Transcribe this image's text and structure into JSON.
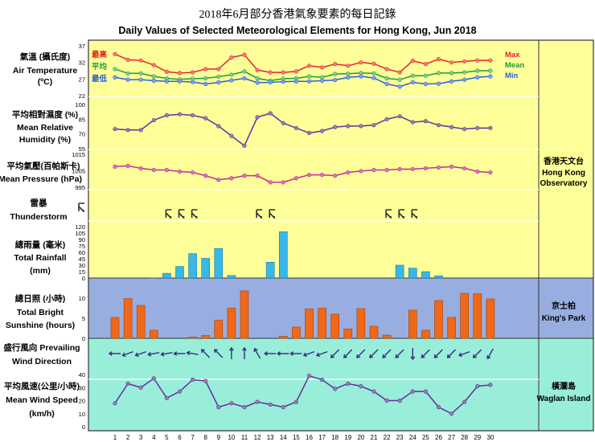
{
  "header": {
    "title_zh": "2018年6月部分香港氣象要素的每日記錄",
    "title_en": "Daily Values of Selected Meteorological Elements for Hong Kong, Jun 2018"
  },
  "panels": {
    "temperature": {
      "label_zh": "氣溫 (攝氏度)",
      "label_en_1": "Air Temperature",
      "label_en_2": "(ºC)"
    },
    "humidity": {
      "label_zh": "平均相對濕度 (%)",
      "label_en_1": "Mean Relative",
      "label_en_2": "Humidity  (%)"
    },
    "pressure": {
      "label_zh": "平均氣壓(百帕斯卡)",
      "label_en_1": "Mean Pressure (hPa)"
    },
    "thunder": {
      "label_zh": "雷暴",
      "label_en_1": "Thunderstorm"
    },
    "rainfall": {
      "label_zh": "總雨量 (毫米)",
      "label_en_1": "Total Rainfall",
      "label_en_2": "(mm)"
    },
    "sunshine": {
      "label_zh": "總日照 (小時)",
      "label_en_1": "Total Bright",
      "label_en_2": "Sunshine  (hours)"
    },
    "wind_dir": {
      "label_zh": "盛行風向 Prevailing",
      "label_en_1": "Wind Direction"
    },
    "wind_speed": {
      "label_zh": "平均風速(公里/小時)",
      "label_en_1": "Mean Wind Speed",
      "label_en_2": "(km/h)"
    }
  },
  "stations": [
    {
      "zh": "香港天文台",
      "en_1": "Hong Kong",
      "en_2": "Observatory"
    },
    {
      "zh": "京士柏",
      "en_1": "King's Park",
      "en_2": ""
    },
    {
      "zh": "橫瀾島",
      "en_1": "Waglan Island",
      "en_2": ""
    }
  ],
  "legend": {
    "max_zh": "最高",
    "mean_zh": "平均",
    "min_zh": "最低",
    "max_en": "Max",
    "mean_en": "Mean",
    "min_en": "Min"
  },
  "colors": {
    "max": "#e8202a",
    "mean": "#1c9a3a",
    "min": "#2a5fd8",
    "line": "#6a2aa0",
    "marker": "#8a8aa0",
    "pressure_line": "#c0308a",
    "pressure_marker": "#e070c8",
    "yellow_bg": "#ffff99",
    "blue_bg": "#99aee0",
    "green_bg": "#99eeda",
    "rain_bar": "#38b8e8",
    "sun_bar": "#f06818",
    "wind_arrow": "#3a2a7a",
    "thunder": "#303030"
  },
  "chart_data": {
    "type": "line",
    "days": [
      1,
      2,
      3,
      4,
      5,
      6,
      7,
      8,
      9,
      10,
      11,
      12,
      13,
      14,
      15,
      16,
      17,
      18,
      19,
      20,
      21,
      22,
      23,
      24,
      25,
      26,
      27,
      28,
      29,
      30
    ],
    "temperature": {
      "yticks": [
        22,
        27,
        32,
        37
      ],
      "ylim": [
        22,
        37
      ],
      "series": [
        {
          "name": "Max",
          "values": [
            34.5,
            32.8,
            32.6,
            31.2,
            29.2,
            28.8,
            29.0,
            30.0,
            30.0,
            33.5,
            34.3,
            29.7,
            29.0,
            29.0,
            29.3,
            31.0,
            30.5,
            31.5,
            31.0,
            32.0,
            31.6,
            30.0,
            29.0,
            32.5,
            31.5,
            33.0,
            32.0,
            32.3,
            32.6,
            32.6
          ]
        },
        {
          "name": "Mean",
          "values": [
            30.0,
            28.7,
            28.7,
            27.8,
            27.2,
            26.9,
            27.1,
            27.2,
            27.7,
            28.3,
            29.3,
            27.2,
            26.5,
            27.1,
            27.2,
            27.8,
            27.5,
            28.5,
            28.6,
            28.8,
            28.7,
            27.2,
            26.8,
            28.0,
            28.0,
            28.8,
            28.8,
            29.0,
            29.5,
            29.5
          ]
        },
        {
          "name": "Min",
          "values": [
            27.5,
            26.8,
            26.8,
            26.5,
            26.3,
            26.3,
            26.1,
            25.5,
            26.0,
            26.6,
            27.2,
            25.9,
            26.0,
            26.2,
            26.3,
            26.3,
            26.5,
            26.7,
            27.5,
            27.8,
            27.3,
            25.5,
            24.7,
            26.0,
            25.5,
            25.6,
            26.3,
            26.8,
            27.5,
            27.8
          ]
        }
      ]
    },
    "humidity": {
      "yticks": [
        55,
        70,
        85,
        100
      ],
      "ylim": [
        55,
        100
      ],
      "values": [
        75,
        74,
        74,
        84,
        89,
        90,
        89,
        86,
        78,
        68,
        58,
        87,
        91,
        81,
        76,
        71,
        73,
        77,
        78,
        78,
        79,
        85,
        88,
        82,
        83,
        79,
        77,
        75,
        76,
        76
      ]
    },
    "pressure": {
      "yticks": [
        995,
        1005,
        1015
      ],
      "ylim": [
        995,
        1015
      ],
      "values": [
        1007.5,
        1008.0,
        1006.5,
        1005.5,
        1005.5,
        1004.5,
        1004.0,
        1002.0,
        999.5,
        1000.5,
        1002.0,
        1002.0,
        998.0,
        998.0,
        1000.5,
        1002.5,
        1002.5,
        1002.0,
        1004.0,
        1004.8,
        1005.5,
        1005.5,
        1006.0,
        1006.0,
        1006.5,
        1007.0,
        1007.5,
        1006.5,
        1004.5,
        1004.0
      ]
    },
    "thunderstorm_days": [
      5,
      6,
      7,
      12,
      13,
      22,
      23,
      24
    ],
    "rainfall": {
      "yticks": [
        0,
        15,
        30,
        45,
        60,
        75,
        90,
        105,
        120
      ],
      "ylim": [
        0,
        120
      ],
      "values": [
        0,
        0,
        0,
        0.5,
        11,
        27,
        57,
        46,
        69,
        6,
        0,
        0,
        37,
        108,
        0,
        0,
        0,
        0,
        0,
        0,
        0,
        0,
        30,
        23,
        15,
        5,
        0,
        0,
        0,
        0
      ]
    },
    "sunshine": {
      "yticks": [
        0,
        5,
        10
      ],
      "ylim": [
        0,
        13
      ],
      "values": [
        5.2,
        9.9,
        8.2,
        2.0,
        0,
        0,
        0.3,
        0.7,
        4.5,
        7.5,
        11.8,
        0,
        0,
        0.5,
        2.8,
        7.3,
        7.5,
        6.0,
        2.3,
        7.4,
        3.0,
        0.8,
        0,
        7.0,
        2.0,
        9.4,
        5.2,
        11.2,
        11.1,
        9.8
      ]
    },
    "wind_direction_deg": [
      90,
      70,
      70,
      80,
      80,
      90,
      100,
      135,
      135,
      180,
      180,
      150,
      90,
      90,
      90,
      70,
      70,
      45,
      45,
      45,
      45,
      45,
      45,
      0,
      45,
      45,
      45,
      70,
      45,
      30
    ],
    "wind_speed": {
      "yticks": [
        0,
        10,
        20,
        30,
        40
      ],
      "ylim": [
        0,
        40
      ],
      "values": [
        18,
        33,
        30,
        37,
        22,
        27,
        36,
        35,
        15,
        18,
        15,
        19,
        17,
        15,
        19,
        39,
        36,
        29,
        33,
        31,
        27,
        20,
        20,
        27,
        27,
        15,
        10,
        19,
        31,
        32
      ]
    }
  }
}
